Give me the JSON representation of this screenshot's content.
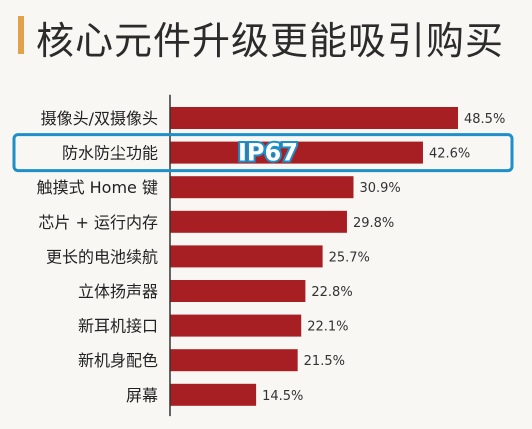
{
  "title": "核心元件升级更能吸引购买",
  "highlight_label": "IP67",
  "colors": {
    "bar": "#a71f22",
    "title_accent": "#e0a24a",
    "highlight": "#1e8fc8"
  },
  "chart_data": {
    "type": "bar",
    "orientation": "horizontal",
    "title": "核心元件升级更能吸引购买",
    "categories": [
      "摄像头/双摄像头",
      "防水防尘功能",
      "触摸式 Home 键",
      "芯片 + 运行内存",
      "更长的电池续航",
      "立体扬声器",
      "新耳机接口",
      "新机身配色",
      "屏幕"
    ],
    "values": [
      48.5,
      42.6,
      30.9,
      29.8,
      25.7,
      22.8,
      22.1,
      21.5,
      14.5
    ],
    "value_labels": [
      "48.5%",
      "42.6%",
      "30.9%",
      "29.8%",
      "25.7%",
      "22.8%",
      "22.1%",
      "21.5%",
      "14.5%"
    ],
    "highlighted_category": "防水防尘功能",
    "xlim": [
      0,
      55
    ],
    "grid": false,
    "legend": "none"
  }
}
